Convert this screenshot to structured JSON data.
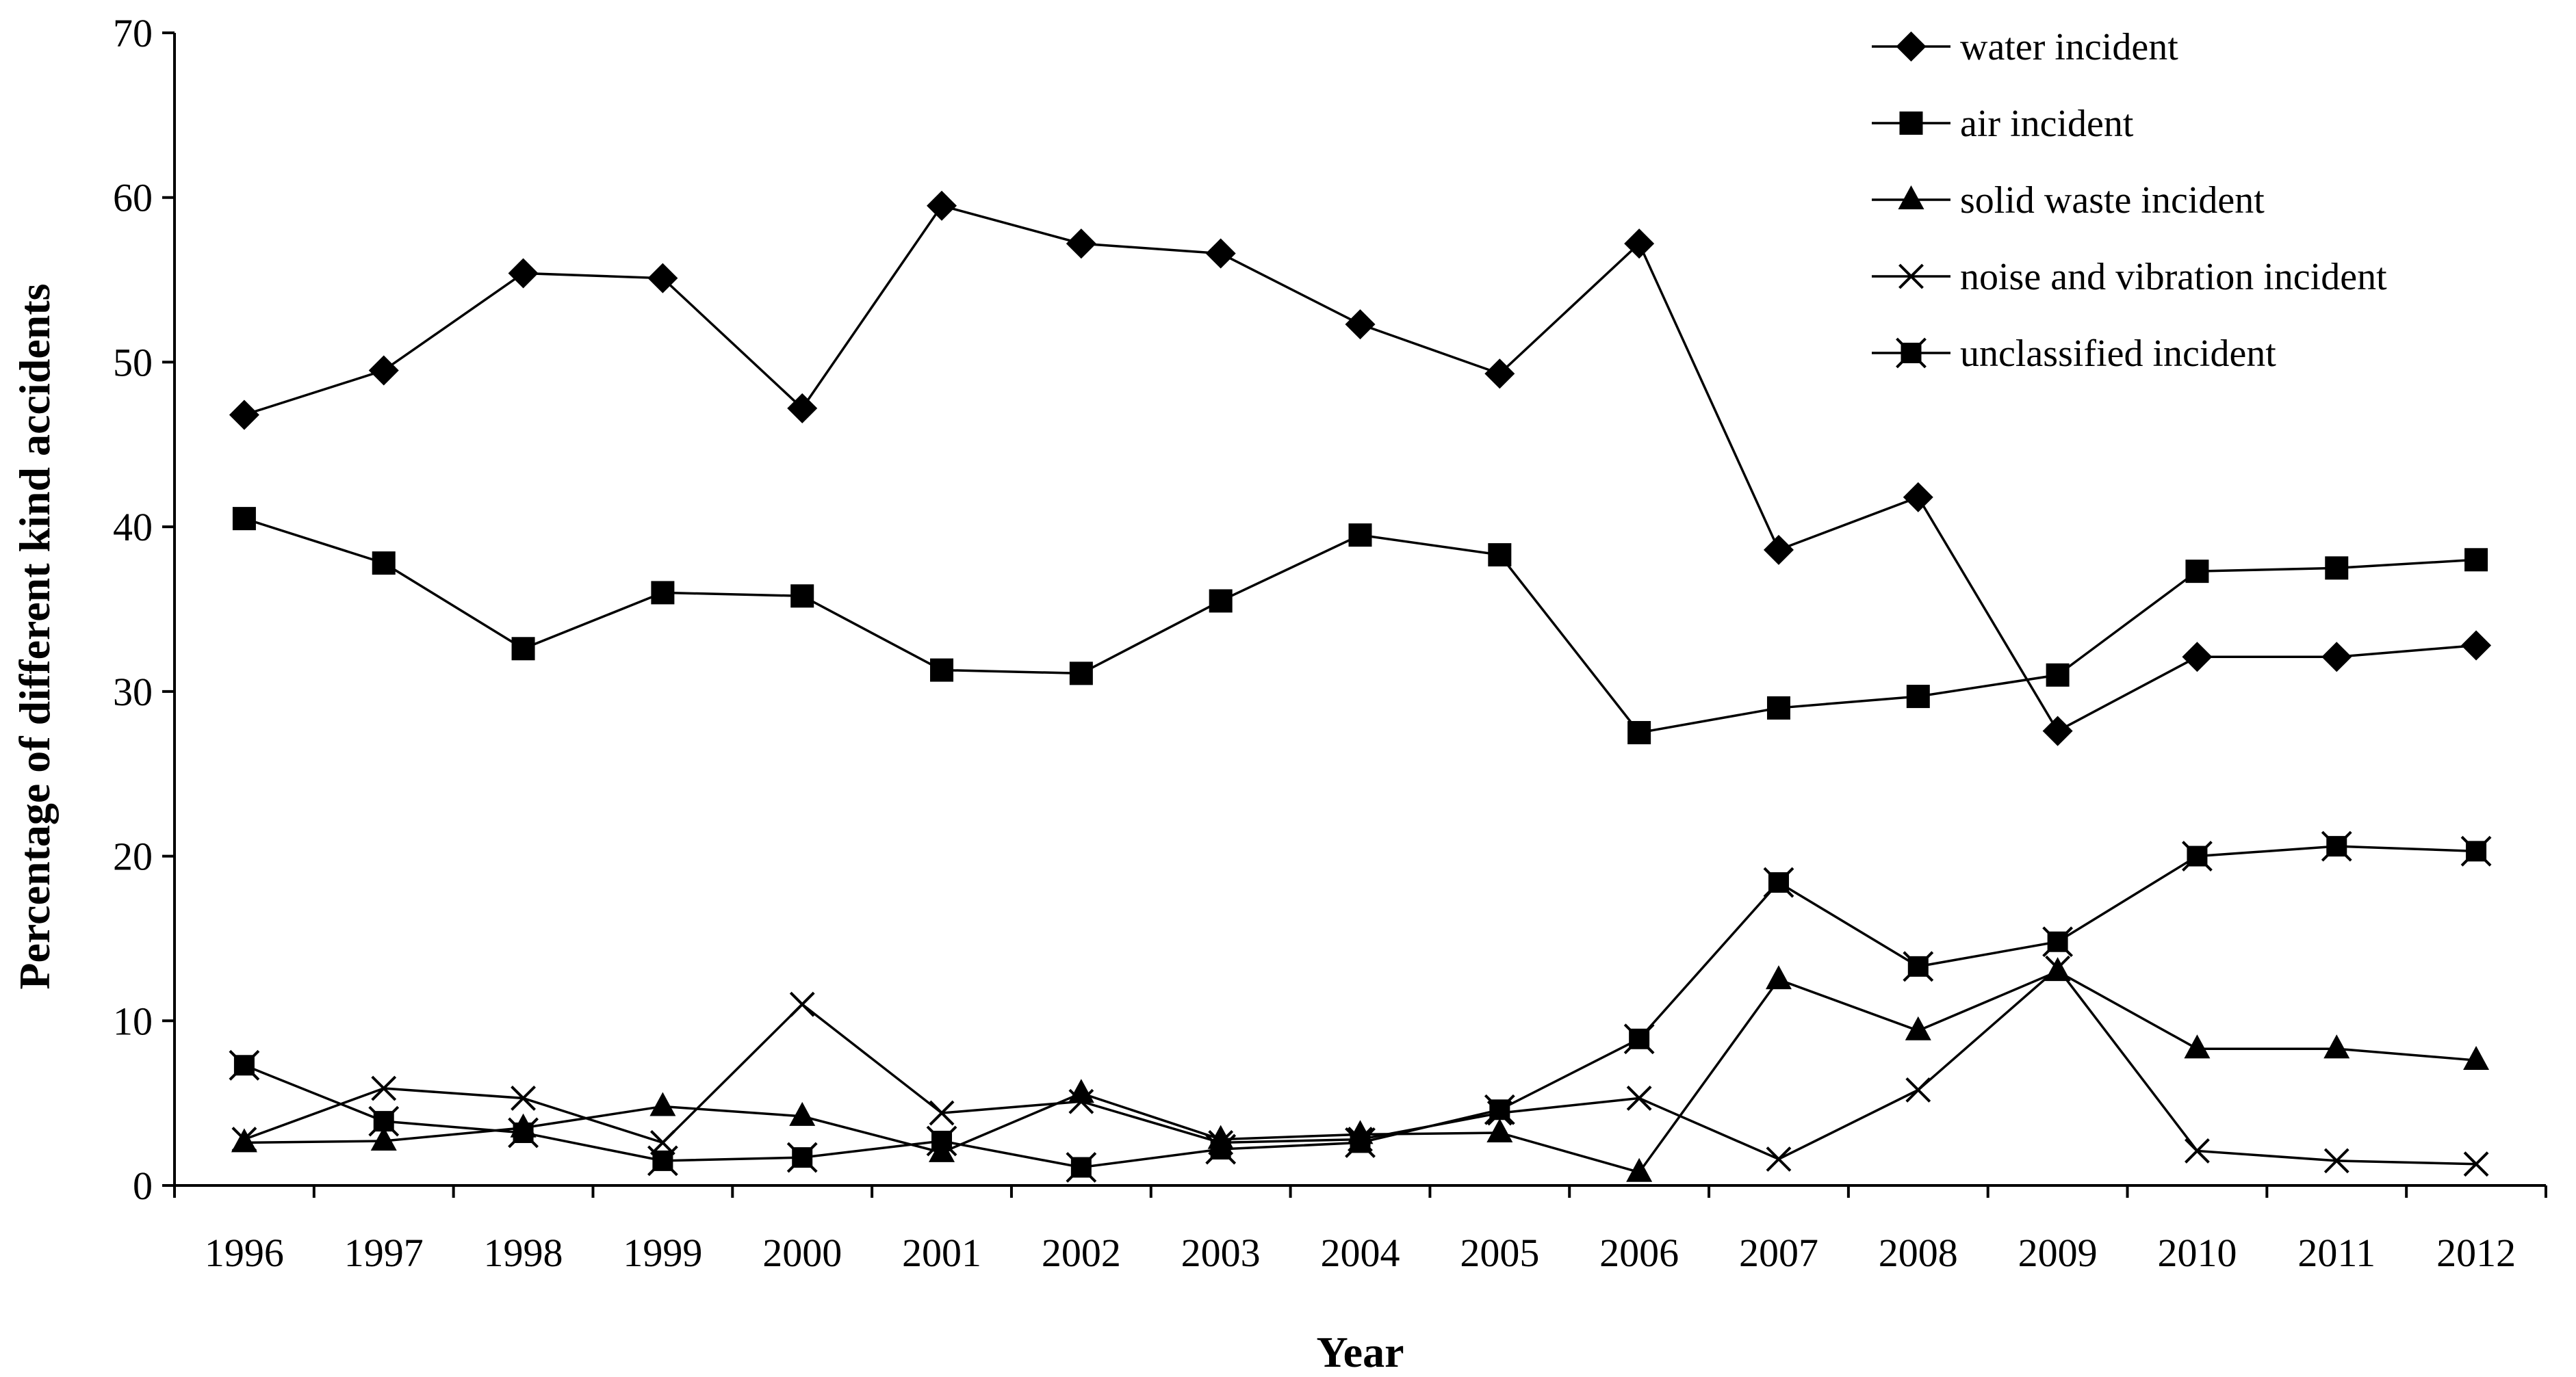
{
  "chart_data": {
    "type": "line",
    "title": "",
    "xlabel": "Year",
    "ylabel": "Percentage of different kind accidents",
    "ylim": [
      0,
      70
    ],
    "y_ticks": [
      "0",
      "10",
      "20",
      "30",
      "40",
      "50",
      "60",
      "70"
    ],
    "grid": false,
    "legend_position": "top-right",
    "categories": [
      "1996",
      "1997",
      "1998",
      "1999",
      "2000",
      "2001",
      "2002",
      "2003",
      "2004",
      "2005",
      "2006",
      "2007",
      "2008",
      "2009",
      "2010",
      "2011",
      "2012"
    ],
    "series": [
      {
        "name": "water incident",
        "marker": "diamond",
        "values": [
          46.8,
          49.5,
          55.4,
          55.1,
          47.2,
          59.5,
          57.2,
          56.6,
          52.3,
          49.3,
          57.2,
          38.6,
          41.8,
          27.6,
          32.1,
          32.1,
          32.8
        ]
      },
      {
        "name": "air incident",
        "marker": "square",
        "values": [
          40.5,
          37.8,
          32.6,
          36.0,
          35.8,
          31.3,
          31.1,
          35.5,
          39.5,
          38.3,
          27.5,
          29.0,
          29.7,
          31.0,
          37.3,
          37.5,
          38.0
        ]
      },
      {
        "name": "solid waste incident",
        "marker": "triangle",
        "values": [
          2.6,
          2.7,
          3.5,
          4.8,
          4.2,
          2.0,
          5.6,
          2.8,
          3.1,
          3.2,
          0.8,
          12.5,
          9.4,
          13.0,
          8.3,
          8.3,
          7.6
        ]
      },
      {
        "name": "noise and vibration incident",
        "marker": "cross",
        "values": [
          2.8,
          5.9,
          5.3,
          2.6,
          11.0,
          4.4,
          5.1,
          2.6,
          2.8,
          4.4,
          5.3,
          1.6,
          5.8,
          13.2,
          2.1,
          1.5,
          1.3
        ]
      },
      {
        "name": "unclassified incident",
        "marker": "star-square",
        "values": [
          7.3,
          3.9,
          3.2,
          1.5,
          1.7,
          2.7,
          1.1,
          2.2,
          2.6,
          4.6,
          8.9,
          18.4,
          13.3,
          14.8,
          20.0,
          20.6,
          20.3
        ]
      }
    ]
  }
}
